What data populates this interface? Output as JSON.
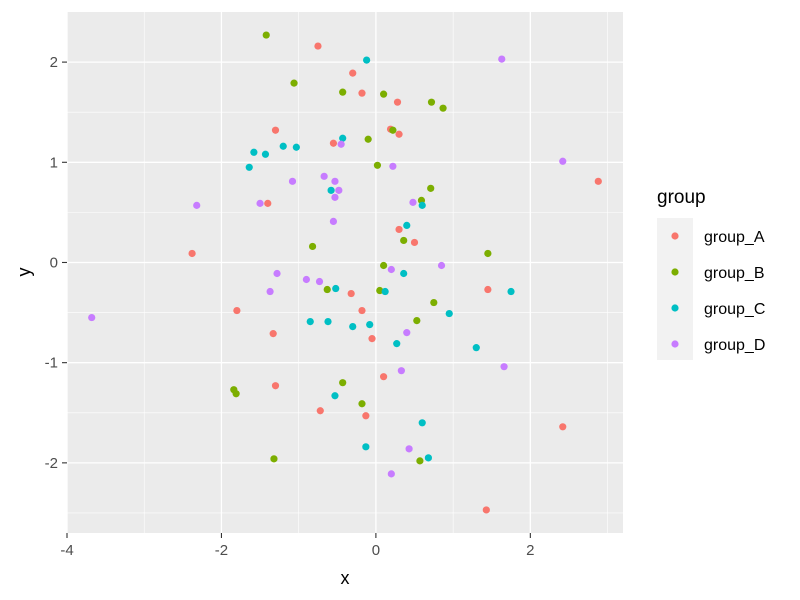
{
  "chart_data": {
    "type": "scatter",
    "xlabel": "x",
    "ylabel": "y",
    "xlim": [
      -4,
      3.2
    ],
    "ylim": [
      -2.7,
      2.5
    ],
    "x_ticks": [
      -4,
      -2,
      0,
      2
    ],
    "y_ticks": [
      -2,
      -1,
      0,
      1,
      2
    ],
    "grid": true,
    "legend": {
      "title": "group",
      "position": "right"
    },
    "series": [
      {
        "name": "group_A",
        "color": "#F8766D",
        "points": [
          [
            -0.75,
            2.16
          ],
          [
            -0.3,
            1.89
          ],
          [
            -0.18,
            1.69
          ],
          [
            0.28,
            1.6
          ],
          [
            -1.3,
            1.32
          ],
          [
            0.19,
            1.33
          ],
          [
            0.3,
            1.28
          ],
          [
            -0.55,
            1.19
          ],
          [
            -1.4,
            0.59
          ],
          [
            2.88,
            0.81
          ],
          [
            0.3,
            0.33
          ],
          [
            0.5,
            0.2
          ],
          [
            -2.38,
            0.09
          ],
          [
            1.45,
            -0.27
          ],
          [
            -0.32,
            -0.31
          ],
          [
            -1.8,
            -0.48
          ],
          [
            -0.18,
            -0.48
          ],
          [
            -1.33,
            -0.71
          ],
          [
            -0.05,
            -0.76
          ],
          [
            0.1,
            -1.14
          ],
          [
            -1.3,
            -1.23
          ],
          [
            -0.72,
            -1.48
          ],
          [
            -0.13,
            -1.53
          ],
          [
            2.42,
            -1.64
          ],
          [
            1.43,
            -2.47
          ]
        ]
      },
      {
        "name": "group_B",
        "color": "#7CAE00",
        "points": [
          [
            -1.42,
            2.27
          ],
          [
            -1.06,
            1.79
          ],
          [
            -0.43,
            1.7
          ],
          [
            0.1,
            1.68
          ],
          [
            0.72,
            1.6
          ],
          [
            0.87,
            1.54
          ],
          [
            0.22,
            1.32
          ],
          [
            -0.1,
            1.23
          ],
          [
            0.02,
            0.97
          ],
          [
            0.71,
            0.74
          ],
          [
            0.59,
            0.62
          ],
          [
            -0.82,
            0.16
          ],
          [
            0.36,
            0.22
          ],
          [
            1.45,
            0.09
          ],
          [
            0.1,
            -0.03
          ],
          [
            -0.63,
            -0.27
          ],
          [
            0.05,
            -0.28
          ],
          [
            0.75,
            -0.4
          ],
          [
            0.53,
            -0.58
          ],
          [
            -0.43,
            -1.2
          ],
          [
            -1.84,
            -1.27
          ],
          [
            -1.81,
            -1.31
          ],
          [
            -0.18,
            -1.41
          ],
          [
            -1.32,
            -1.96
          ],
          [
            0.57,
            -1.98
          ]
        ]
      },
      {
        "name": "group_C",
        "color": "#00BFC4",
        "points": [
          [
            -0.12,
            2.02
          ],
          [
            -0.43,
            1.24
          ],
          [
            -1.2,
            1.16
          ],
          [
            -1.03,
            1.15
          ],
          [
            -1.58,
            1.1
          ],
          [
            -1.43,
            1.08
          ],
          [
            -1.64,
            0.95
          ],
          [
            -0.58,
            0.72
          ],
          [
            0.6,
            0.57
          ],
          [
            0.4,
            0.37
          ],
          [
            0.36,
            -0.11
          ],
          [
            0.12,
            -0.29
          ],
          [
            1.75,
            -0.29
          ],
          [
            -0.52,
            -0.26
          ],
          [
            -0.85,
            -0.59
          ],
          [
            -0.62,
            -0.59
          ],
          [
            -0.3,
            -0.64
          ],
          [
            -0.08,
            -0.62
          ],
          [
            0.95,
            -0.51
          ],
          [
            0.27,
            -0.81
          ],
          [
            1.3,
            -0.85
          ],
          [
            -0.53,
            -1.33
          ],
          [
            -0.13,
            -1.84
          ],
          [
            0.6,
            -1.6
          ],
          [
            0.68,
            -1.95
          ]
        ]
      },
      {
        "name": "group_D",
        "color": "#C77CFF",
        "points": [
          [
            1.63,
            2.03
          ],
          [
            2.42,
            1.01
          ],
          [
            -0.45,
            1.18
          ],
          [
            0.22,
            0.96
          ],
          [
            -1.08,
            0.81
          ],
          [
            -0.67,
            0.86
          ],
          [
            -0.53,
            0.81
          ],
          [
            -0.48,
            0.72
          ],
          [
            -0.53,
            0.65
          ],
          [
            0.48,
            0.6
          ],
          [
            -2.32,
            0.57
          ],
          [
            -1.5,
            0.59
          ],
          [
            -0.55,
            0.41
          ],
          [
            0.85,
            -0.03
          ],
          [
            0.2,
            -0.07
          ],
          [
            -1.28,
            -0.11
          ],
          [
            -0.9,
            -0.17
          ],
          [
            -0.73,
            -0.19
          ],
          [
            -1.37,
            -0.29
          ],
          [
            0.4,
            -0.7
          ],
          [
            -3.68,
            -0.55
          ],
          [
            1.66,
            -1.04
          ],
          [
            0.33,
            -1.08
          ],
          [
            0.43,
            -1.86
          ],
          [
            0.2,
            -2.11
          ]
        ]
      }
    ]
  }
}
